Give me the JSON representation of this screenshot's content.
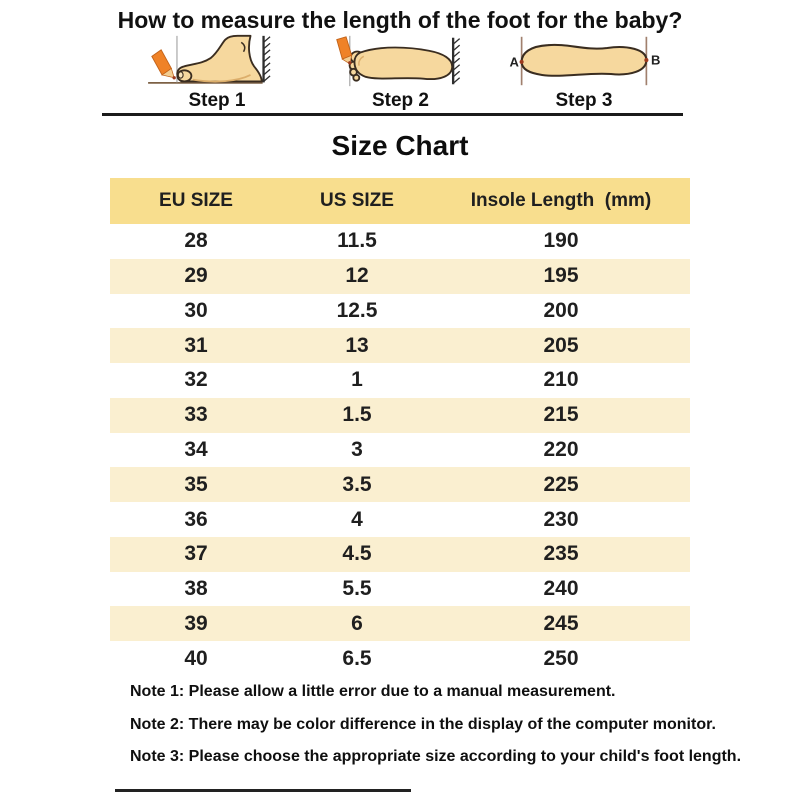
{
  "title": "How to measure the length of the foot for the baby?",
  "steps": [
    {
      "label": "Step 1"
    },
    {
      "label": "Step 2"
    },
    {
      "label": "Step 3"
    }
  ],
  "step3_markers": {
    "left": "A",
    "right": "B"
  },
  "chart_data": {
    "type": "table",
    "title": "Size Chart",
    "columns": [
      "EU SIZE",
      "US SIZE",
      "Insole Length  (mm)"
    ],
    "rows": [
      [
        "28",
        "11.5",
        "190"
      ],
      [
        "29",
        "12",
        "195"
      ],
      [
        "30",
        "12.5",
        "200"
      ],
      [
        "31",
        "13",
        "205"
      ],
      [
        "32",
        "1",
        "210"
      ],
      [
        "33",
        "1.5",
        "215"
      ],
      [
        "34",
        "3",
        "220"
      ],
      [
        "35",
        "3.5",
        "225"
      ],
      [
        "36",
        "4",
        "230"
      ],
      [
        "37",
        "4.5",
        "235"
      ],
      [
        "38",
        "5.5",
        "240"
      ],
      [
        "39",
        "6",
        "245"
      ],
      [
        "40",
        "6.5",
        "250"
      ]
    ]
  },
  "notes": [
    "Note 1: Please allow a little error due to a manual measurement.",
    "Note 2: There may be color difference in the display of the computer monitor.",
    "Note 3: Please choose the appropriate size according to your child's foot length."
  ],
  "colors": {
    "header_bg": "#F8DE8E",
    "row_alt_bg": "#FAEFD0",
    "divider": "#1B1B1B",
    "pencil_orange": "#EF8227",
    "skin_tan": "#F6D89E",
    "foot_outline": "#3A2D20",
    "marker_line_brown": "#A1806E",
    "dot_red": "#9C3A1E"
  }
}
